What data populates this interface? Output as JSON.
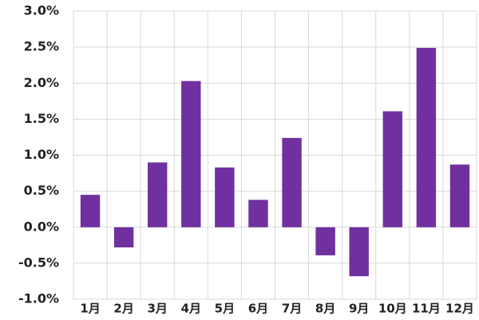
{
  "chart_data": {
    "type": "bar",
    "categories": [
      "1月",
      "2月",
      "3月",
      "4月",
      "5月",
      "6月",
      "7月",
      "8月",
      "9月",
      "10月",
      "11月",
      "12月"
    ],
    "values": [
      0.45,
      -0.28,
      0.9,
      2.03,
      0.83,
      0.38,
      1.24,
      -0.39,
      -0.68,
      1.61,
      2.49,
      0.87
    ],
    "color": "#7030a0",
    "ylim": [
      -1.0,
      3.0
    ],
    "yticks": [
      {
        "value": -1.0,
        "label": "-1.0%"
      },
      {
        "value": -0.5,
        "label": "-0.5%"
      },
      {
        "value": 0.0,
        "label": "0.0%"
      },
      {
        "value": 0.5,
        "label": "0.5%"
      },
      {
        "value": 1.0,
        "label": "1.0%"
      },
      {
        "value": 1.5,
        "label": "1.5%"
      },
      {
        "value": 2.0,
        "label": "2.0%"
      },
      {
        "value": 2.5,
        "label": "2.5%"
      },
      {
        "value": 3.0,
        "label": "3.0%"
      }
    ],
    "grid": true
  }
}
